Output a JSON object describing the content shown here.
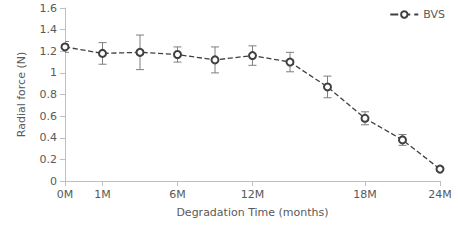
{
  "chart_data": {
    "type": "line",
    "x_label": "Degradation Time (months)",
    "y_label": "Radial force (N)",
    "categories": [
      "0M",
      "1M",
      null,
      "6M",
      null,
      "12M",
      null,
      null,
      "18M",
      null,
      "24M"
    ],
    "series": [
      {
        "name": "BVS",
        "color": "#404040",
        "marker": "emptyCircle",
        "line_style": "dashed",
        "values": [
          1.24,
          1.18,
          1.19,
          1.17,
          1.12,
          1.16,
          1.1,
          0.87,
          0.58,
          0.38,
          0.11
        ],
        "errors": [
          0.05,
          0.1,
          0.16,
          0.07,
          0.12,
          0.09,
          0.09,
          0.1,
          0.06,
          0.05,
          0.02
        ]
      }
    ],
    "ylim": [
      0,
      1.6
    ],
    "yticks": [
      0,
      0.2,
      0.4,
      0.6,
      0.8,
      1,
      1.2,
      1.4,
      1.6
    ],
    "grid": false,
    "legend": "top-right"
  }
}
